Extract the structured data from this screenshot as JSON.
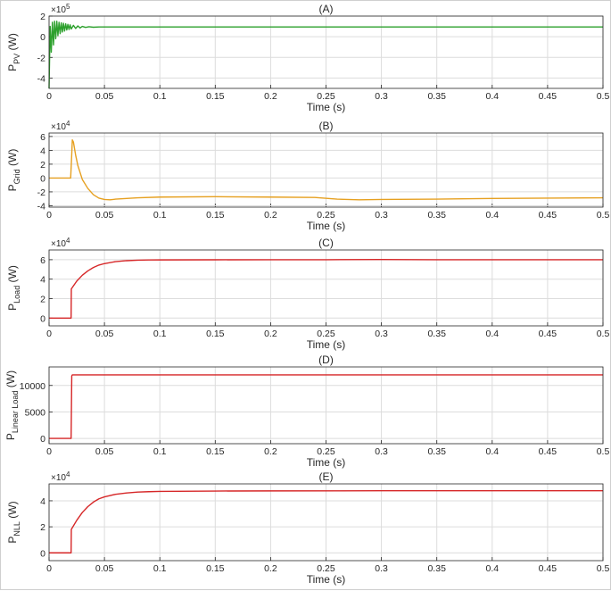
{
  "chart_data": [
    {
      "type": "line",
      "title": "(A)",
      "xlabel": "Time (s)",
      "ylabel_main": "P",
      "ylabel_sub": "PV",
      "ylabel_unit": "(W)",
      "exponent": "5",
      "xlim": [
        0,
        0.5
      ],
      "ylim": [
        -5,
        2
      ],
      "xticks": [
        "0",
        "0.05",
        "0.1",
        "0.15",
        "0.2",
        "0.25",
        "0.3",
        "0.35",
        "0.4",
        "0.45",
        "0.5"
      ],
      "yticks": [
        "-4",
        "-2",
        "0",
        "2"
      ],
      "ytick_values": [
        -4,
        -2,
        0,
        2
      ],
      "grid": true,
      "color": "#2ca02c",
      "series": [
        {
          "x": [
            0,
            0.001,
            0.002,
            0.003,
            0.004,
            0.005,
            0.006,
            0.007,
            0.008,
            0.009,
            0.01,
            0.011,
            0.012,
            0.013,
            0.014,
            0.015,
            0.016,
            0.017,
            0.018,
            0.019,
            0.02,
            0.022,
            0.024,
            0.026,
            0.028,
            0.03,
            0.033,
            0.036,
            0.04,
            0.045,
            0.1,
            0.2,
            0.3,
            0.4,
            0.5
          ],
          "values": [
            -5,
            1.0,
            -1.5,
            1.4,
            -0.8,
            1.5,
            -0.2,
            1.5,
            0.1,
            1.4,
            0.3,
            1.35,
            0.45,
            1.3,
            0.55,
            1.25,
            0.65,
            1.2,
            0.7,
            1.15,
            0.75,
            1.1,
            0.8,
            1.05,
            0.85,
            1.0,
            0.9,
            0.97,
            0.92,
            0.95,
            0.95,
            0.95,
            0.95,
            0.95,
            0.95
          ]
        }
      ]
    },
    {
      "type": "line",
      "title": "(B)",
      "xlabel": "Time (s)",
      "ylabel_main": "P",
      "ylabel_sub": "Grid",
      "ylabel_unit": "(W)",
      "exponent": "4",
      "xlim": [
        0,
        0.5
      ],
      "ylim": [
        -4.2,
        6.5
      ],
      "xticks": [
        "0",
        "0.05",
        "0.1",
        "0.15",
        "0.2",
        "0.25",
        "0.3",
        "0.35",
        "0.4",
        "0.45",
        "0.5"
      ],
      "yticks": [
        "-4",
        "-2",
        "0",
        "2",
        "4",
        "6"
      ],
      "ytick_values": [
        -4,
        -2,
        0,
        2,
        4,
        6
      ],
      "grid": true,
      "color": "#e6a020",
      "series": [
        {
          "x": [
            0,
            0.0195,
            0.0205,
            0.021,
            0.022,
            0.024,
            0.026,
            0.03,
            0.035,
            0.04,
            0.045,
            0.05,
            0.055,
            0.06,
            0.07,
            0.08,
            0.1,
            0.15,
            0.2,
            0.24,
            0.26,
            0.28,
            0.3,
            0.35,
            0.4,
            0.45,
            0.5
          ],
          "values": [
            0,
            0,
            3.5,
            5.5,
            5.2,
            3.3,
            1.8,
            -0.2,
            -1.5,
            -2.4,
            -2.9,
            -3.1,
            -3.15,
            -3.05,
            -2.95,
            -2.85,
            -2.75,
            -2.7,
            -2.75,
            -2.8,
            -3.05,
            -3.15,
            -3.1,
            -3.05,
            -2.95,
            -2.9,
            -2.85
          ]
        }
      ]
    },
    {
      "type": "line",
      "title": "(C)",
      "xlabel": "Time (s)",
      "ylabel_main": "P",
      "ylabel_sub": "Load",
      "ylabel_unit": "(W)",
      "exponent": "4",
      "xlim": [
        0,
        0.5
      ],
      "ylim": [
        -0.8,
        7
      ],
      "xticks": [
        "0",
        "0.05",
        "0.1",
        "0.15",
        "0.2",
        "0.25",
        "0.3",
        "0.35",
        "0.4",
        "0.45",
        "0.5"
      ],
      "yticks": [
        "0",
        "2",
        "4",
        "6"
      ],
      "ytick_values": [
        0,
        2,
        4,
        6
      ],
      "grid": true,
      "color": "#d62728",
      "series": [
        {
          "x": [
            0,
            0.0199,
            0.0201,
            0.025,
            0.03,
            0.035,
            0.04,
            0.045,
            0.05,
            0.06,
            0.07,
            0.08,
            0.09,
            0.1,
            0.15,
            0.2,
            0.25,
            0.3,
            0.35,
            0.4,
            0.45,
            0.5
          ],
          "values": [
            0,
            0,
            3.0,
            3.8,
            4.4,
            4.85,
            5.2,
            5.45,
            5.6,
            5.8,
            5.9,
            5.95,
            5.97,
            5.98,
            5.99,
            6.0,
            6.0,
            6.02,
            6.0,
            6.0,
            6.0,
            6.0
          ]
        }
      ]
    },
    {
      "type": "line",
      "title": "(D)",
      "xlabel": "Time (s)",
      "ylabel_main": "P",
      "ylabel_sub": "Linear Load",
      "ylabel_unit": "(W)",
      "exponent": "",
      "xlim": [
        0,
        0.5
      ],
      "ylim": [
        -1000,
        13500
      ],
      "xticks": [
        "0",
        "0.05",
        "0.1",
        "0.15",
        "0.2",
        "0.25",
        "0.3",
        "0.35",
        "0.4",
        "0.45",
        "0.5"
      ],
      "yticks": [
        "0",
        "5000",
        "10000"
      ],
      "ytick_values": [
        0,
        5000,
        10000
      ],
      "grid": true,
      "color": "#d62728",
      "series": [
        {
          "x": [
            0,
            0.0199,
            0.0205,
            0.021,
            0.5
          ],
          "values": [
            0,
            0,
            11800,
            12000,
            12000
          ]
        }
      ]
    },
    {
      "type": "line",
      "title": "(E)",
      "xlabel": "Time (s)",
      "ylabel_main": "P",
      "ylabel_sub": "NLL",
      "ylabel_unit": "(W)",
      "exponent": "4",
      "xlim": [
        0,
        0.5
      ],
      "ylim": [
        -0.6,
        5.3
      ],
      "xticks": [
        "0",
        "0.05",
        "0.1",
        "0.15",
        "0.2",
        "0.25",
        "0.3",
        "0.35",
        "0.4",
        "0.45",
        "0.5"
      ],
      "yticks": [
        "0",
        "2",
        "4"
      ],
      "ytick_values": [
        0,
        2,
        4
      ],
      "grid": true,
      "color": "#d62728",
      "series": [
        {
          "x": [
            0,
            0.0199,
            0.0201,
            0.025,
            0.03,
            0.035,
            0.04,
            0.045,
            0.05,
            0.06,
            0.07,
            0.08,
            0.09,
            0.1,
            0.15,
            0.2,
            0.3,
            0.4,
            0.5
          ],
          "values": [
            0,
            0,
            1.8,
            2.5,
            3.1,
            3.55,
            3.9,
            4.15,
            4.3,
            4.5,
            4.6,
            4.67,
            4.7,
            4.72,
            4.75,
            4.76,
            4.77,
            4.77,
            4.77
          ]
        }
      ]
    }
  ]
}
